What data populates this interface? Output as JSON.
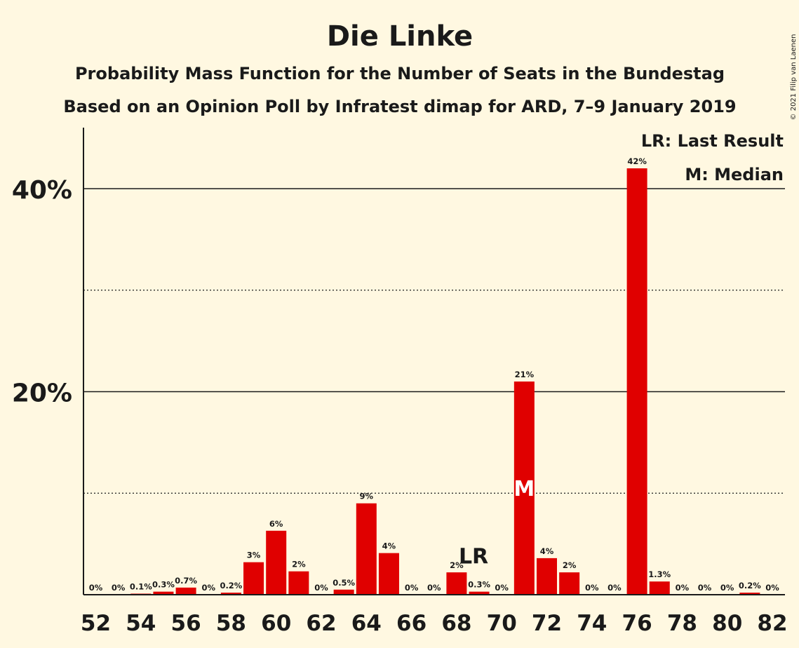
{
  "chart_data": {
    "type": "bar",
    "title": "Die Linke",
    "subtitle1": "Probability Mass Function for the Number of Seats in the Bundestag",
    "subtitle2": "Based on an Opinion Poll by Infratest dimap for ARD, 7–9 January 2019",
    "copyright": "© 2021 Filip van Laenen",
    "x": [
      52,
      53,
      54,
      55,
      56,
      57,
      58,
      59,
      60,
      61,
      62,
      63,
      64,
      65,
      66,
      67,
      68,
      69,
      70,
      71,
      72,
      73,
      74,
      75,
      76,
      77,
      78,
      79,
      80,
      81,
      82
    ],
    "values": [
      0,
      0,
      0.1,
      0.3,
      0.7,
      0,
      0.2,
      3.2,
      6.3,
      2.3,
      0,
      0.5,
      9,
      4.1,
      0,
      0,
      2.2,
      0.3,
      0,
      21,
      3.6,
      2.2,
      0,
      0,
      42,
      1.3,
      0,
      0,
      0,
      0.2,
      0
    ],
    "labels": [
      "0%",
      "0%",
      "0.1%",
      "0.3%",
      "0.7%",
      "0%",
      "0.2%",
      "3%",
      "6%",
      "2%",
      "0%",
      "0.5%",
      "9%",
      "4%",
      "0%",
      "0%",
      "2%",
      "0.3%",
      "0%",
      "21%",
      "4%",
      "2%",
      "0%",
      "0%",
      "42%",
      "1.3%",
      "0%",
      "0%",
      "0%",
      "0.2%",
      "0%"
    ],
    "x_tick_labels": [
      "52",
      "54",
      "56",
      "58",
      "60",
      "62",
      "64",
      "66",
      "68",
      "70",
      "72",
      "74",
      "76",
      "78",
      "80",
      "82"
    ],
    "y_tick_labels": [
      "40%",
      "20%"
    ],
    "y_ticks": [
      40,
      20
    ],
    "y_minor_ticks": [
      30,
      10
    ],
    "ylim": [
      0,
      46
    ],
    "last_result_seat": 69,
    "median_seat": 71,
    "last_result_mark": "LR",
    "median_mark": "M",
    "legend": [
      "LR: Last Result",
      "M: Median"
    ],
    "colors": {
      "bar": "#e00000",
      "background": "#fff8e1",
      "text": "#1a1a1a"
    }
  }
}
